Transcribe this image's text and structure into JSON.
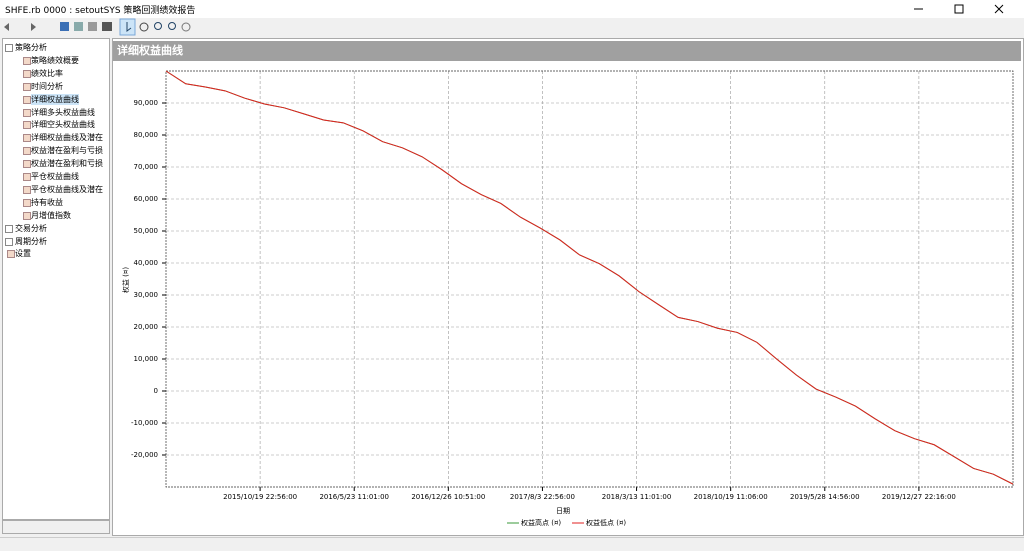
{
  "window": {
    "title": "SHFE.rb 0000 : setoutSYS 策略回测绩效报告"
  },
  "tree": {
    "items": [
      {
        "label": "策略分析",
        "children": [
          "策略绩效概要",
          "绩效比率",
          "时间分析",
          "详细权益曲线",
          "详细多头权益曲线",
          "详细空头权益曲线",
          "详细权益曲线及潜在",
          "权益潜在盈利与亏损",
          "权益潜在盈利和亏损",
          "平仓权益曲线",
          "平仓权益曲线及潜在",
          "持有收益",
          "月增值指数"
        ]
      },
      {
        "label": "交易分析",
        "children": []
      },
      {
        "label": "周期分析",
        "children": []
      },
      {
        "label": "设置",
        "children": []
      }
    ],
    "selected": "详细权益曲线"
  },
  "panel": {
    "title": "详细权益曲线"
  },
  "chart_data": {
    "type": "line",
    "ylabel": "权益 (¤)",
    "xlabel": "日期",
    "xticks": [
      "2015/10/19 22:56:00",
      "2016/5/23 11:01:00",
      "2016/12/26 10:51:00",
      "2017/8/3 22:56:00",
      "2018/3/13 11:01:00",
      "2018/10/19 11:06:00",
      "2019/5/28 14:56:00",
      "2019/12/27 22:16:00"
    ],
    "ylim": [
      -30000,
      100000
    ],
    "yticks": [
      {
        "value": -20000,
        "label": "-20,000"
      },
      {
        "value": -10000,
        "label": "-10,000"
      },
      0,
      {
        "value": 10000,
        "label": "10,000"
      },
      {
        "value": 20000,
        "label": "20,000"
      },
      {
        "value": 30000,
        "label": "30,000"
      },
      {
        "value": 40000,
        "label": "40,000"
      },
      {
        "value": 50000,
        "label": "50,000"
      },
      {
        "value": 60000,
        "label": "60,000"
      },
      {
        "value": 70000,
        "label": "70,000"
      },
      {
        "value": 80000,
        "label": "80,000"
      },
      {
        "value": 90000,
        "label": "90,000"
      }
    ],
    "grid": true,
    "series": [
      {
        "name": "权益高点 (¤)",
        "color": "#3a9a3a",
        "values": [
          100000,
          96000,
          95000,
          93800,
          91500,
          89700,
          88500,
          86600,
          84700,
          83800,
          81300,
          77900,
          76000,
          73200,
          69200,
          64800,
          61400,
          58600,
          54300,
          50900,
          47200,
          42500,
          39800,
          36000,
          31100,
          27000,
          23000,
          21700,
          19600,
          18300,
          15200,
          10000,
          5000,
          600,
          -1900,
          -4700,
          -8700,
          -12400,
          -14900,
          -16800,
          -20500,
          -24200,
          -26000,
          -29100
        ]
      },
      {
        "name": "权益低点 (¤)",
        "color": "#e02020",
        "values": [
          100000,
          96000,
          95000,
          93800,
          91500,
          89700,
          88500,
          86600,
          84700,
          83800,
          81300,
          77900,
          76000,
          73200,
          69200,
          64800,
          61400,
          58600,
          54300,
          50900,
          47200,
          42500,
          39800,
          36000,
          31100,
          27000,
          23000,
          21700,
          19600,
          18300,
          15200,
          10000,
          5000,
          600,
          -1900,
          -4700,
          -8700,
          -12400,
          -14900,
          -16800,
          -20500,
          -24200,
          -26000,
          -29100
        ]
      }
    ]
  }
}
